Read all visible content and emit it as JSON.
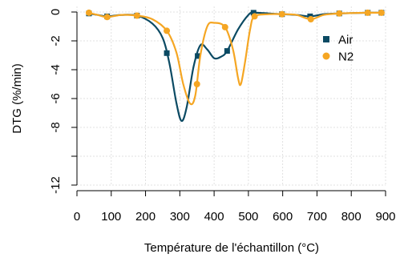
{
  "chart_data": {
    "type": "line",
    "title": "",
    "xlabel": "Température de l'échantillon (°C)",
    "ylabel": "DTG (%/min)",
    "xlim": [
      0,
      900
    ],
    "ylim": [
      -12,
      0
    ],
    "x_ticks": [
      0,
      100,
      200,
      300,
      400,
      500,
      600,
      700,
      800,
      900
    ],
    "y_ticks": [
      0,
      -2,
      -4,
      -6,
      -8,
      -10,
      -12
    ],
    "y_tick_labels": [
      "0",
      "-2",
      "-4",
      "-6",
      "-8",
      "",
      "-12"
    ],
    "grid": true,
    "legend_position": "right",
    "series": [
      {
        "name": "Air",
        "color": "#0b4a63",
        "marker": "square",
        "points": [
          {
            "x": 35,
            "y": -0.1
          },
          {
            "x": 88,
            "y": -0.3
          },
          {
            "x": 175,
            "y": -0.25
          },
          {
            "x": 262,
            "y": -2.85
          },
          {
            "x": 352,
            "y": -3.05
          },
          {
            "x": 438,
            "y": -2.7
          },
          {
            "x": 515,
            "y": -0.05
          },
          {
            "x": 598,
            "y": -0.15
          },
          {
            "x": 680,
            "y": -0.3
          },
          {
            "x": 765,
            "y": -0.1
          },
          {
            "x": 848,
            "y": -0.05
          },
          {
            "x": 888,
            "y": -0.05
          }
        ],
        "curve": [
          {
            "x": 35,
            "y": -0.1
          },
          {
            "x": 60,
            "y": -0.2
          },
          {
            "x": 88,
            "y": -0.3
          },
          {
            "x": 130,
            "y": -0.2
          },
          {
            "x": 175,
            "y": -0.25
          },
          {
            "x": 220,
            "y": -0.8
          },
          {
            "x": 250,
            "y": -1.8
          },
          {
            "x": 270,
            "y": -3.6
          },
          {
            "x": 290,
            "y": -6.3
          },
          {
            "x": 305,
            "y": -7.55
          },
          {
            "x": 320,
            "y": -6.6
          },
          {
            "x": 340,
            "y": -3.8
          },
          {
            "x": 360,
            "y": -2.3
          },
          {
            "x": 380,
            "y": -2.6
          },
          {
            "x": 400,
            "y": -3.2
          },
          {
            "x": 420,
            "y": -3.1
          },
          {
            "x": 438,
            "y": -2.7
          },
          {
            "x": 470,
            "y": -1.2
          },
          {
            "x": 500,
            "y": -0.2
          },
          {
            "x": 515,
            "y": -0.05
          },
          {
            "x": 560,
            "y": -0.1
          },
          {
            "x": 598,
            "y": -0.15
          },
          {
            "x": 640,
            "y": -0.2
          },
          {
            "x": 680,
            "y": -0.3
          },
          {
            "x": 720,
            "y": -0.15
          },
          {
            "x": 765,
            "y": -0.1
          },
          {
            "x": 848,
            "y": -0.05
          },
          {
            "x": 888,
            "y": -0.05
          }
        ]
      },
      {
        "name": "N2",
        "color": "#f5a623",
        "marker": "circle",
        "points": [
          {
            "x": 35,
            "y": -0.05
          },
          {
            "x": 88,
            "y": -0.35
          },
          {
            "x": 175,
            "y": -0.25
          },
          {
            "x": 262,
            "y": -1.3
          },
          {
            "x": 350,
            "y": -5.0
          },
          {
            "x": 432,
            "y": -1.05
          },
          {
            "x": 518,
            "y": -0.3
          },
          {
            "x": 598,
            "y": -0.15
          },
          {
            "x": 682,
            "y": -0.5
          },
          {
            "x": 765,
            "y": -0.1
          },
          {
            "x": 848,
            "y": -0.05
          },
          {
            "x": 888,
            "y": -0.05
          }
        ],
        "curve": [
          {
            "x": 35,
            "y": -0.05
          },
          {
            "x": 60,
            "y": -0.2
          },
          {
            "x": 88,
            "y": -0.35
          },
          {
            "x": 130,
            "y": -0.2
          },
          {
            "x": 175,
            "y": -0.25
          },
          {
            "x": 220,
            "y": -0.5
          },
          {
            "x": 262,
            "y": -1.3
          },
          {
            "x": 290,
            "y": -2.8
          },
          {
            "x": 310,
            "y": -5.0
          },
          {
            "x": 330,
            "y": -6.35
          },
          {
            "x": 345,
            "y": -5.8
          },
          {
            "x": 360,
            "y": -3.0
          },
          {
            "x": 380,
            "y": -1.0
          },
          {
            "x": 400,
            "y": -0.75
          },
          {
            "x": 432,
            "y": -1.05
          },
          {
            "x": 455,
            "y": -2.6
          },
          {
            "x": 470,
            "y": -4.6
          },
          {
            "x": 478,
            "y": -5.0
          },
          {
            "x": 490,
            "y": -3.5
          },
          {
            "x": 505,
            "y": -1.2
          },
          {
            "x": 518,
            "y": -0.3
          },
          {
            "x": 560,
            "y": -0.15
          },
          {
            "x": 598,
            "y": -0.15
          },
          {
            "x": 640,
            "y": -0.2
          },
          {
            "x": 682,
            "y": -0.5
          },
          {
            "x": 720,
            "y": -0.2
          },
          {
            "x": 765,
            "y": -0.1
          },
          {
            "x": 848,
            "y": -0.05
          },
          {
            "x": 888,
            "y": -0.05
          }
        ]
      }
    ]
  }
}
